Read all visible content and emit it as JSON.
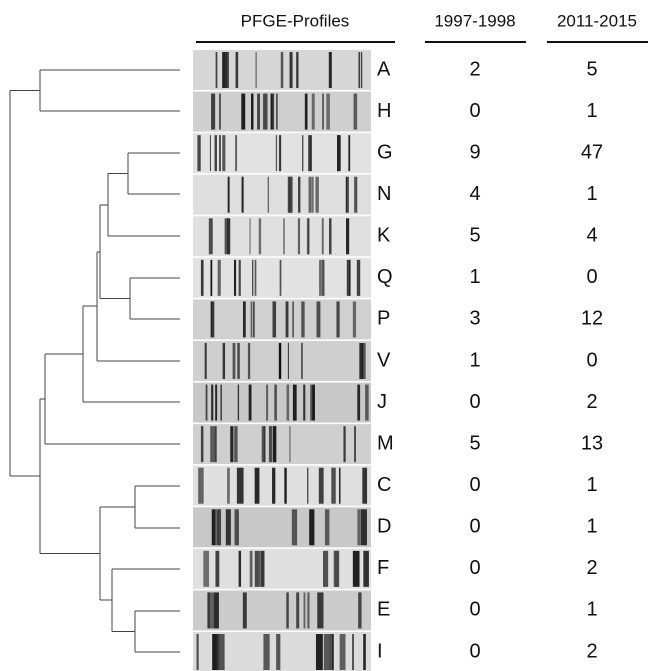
{
  "header": {
    "profiles": "PFGE-Profiles",
    "period1": "1997-1998",
    "period2": "2011-2015"
  },
  "rows": [
    [
      "A",
      2,
      5
    ],
    [
      "H",
      0,
      1
    ],
    [
      "G",
      9,
      47
    ],
    [
      "N",
      4,
      1
    ],
    [
      "K",
      5,
      4
    ],
    [
      "Q",
      1,
      0
    ],
    [
      "P",
      3,
      12
    ],
    [
      "V",
      1,
      0
    ],
    [
      "J",
      0,
      2
    ],
    [
      "M",
      5,
      13
    ],
    [
      "C",
      0,
      1
    ],
    [
      "D",
      0,
      1
    ],
    [
      "F",
      0,
      2
    ],
    [
      "E",
      0,
      1
    ],
    [
      "I",
      0,
      2
    ]
  ]
}
